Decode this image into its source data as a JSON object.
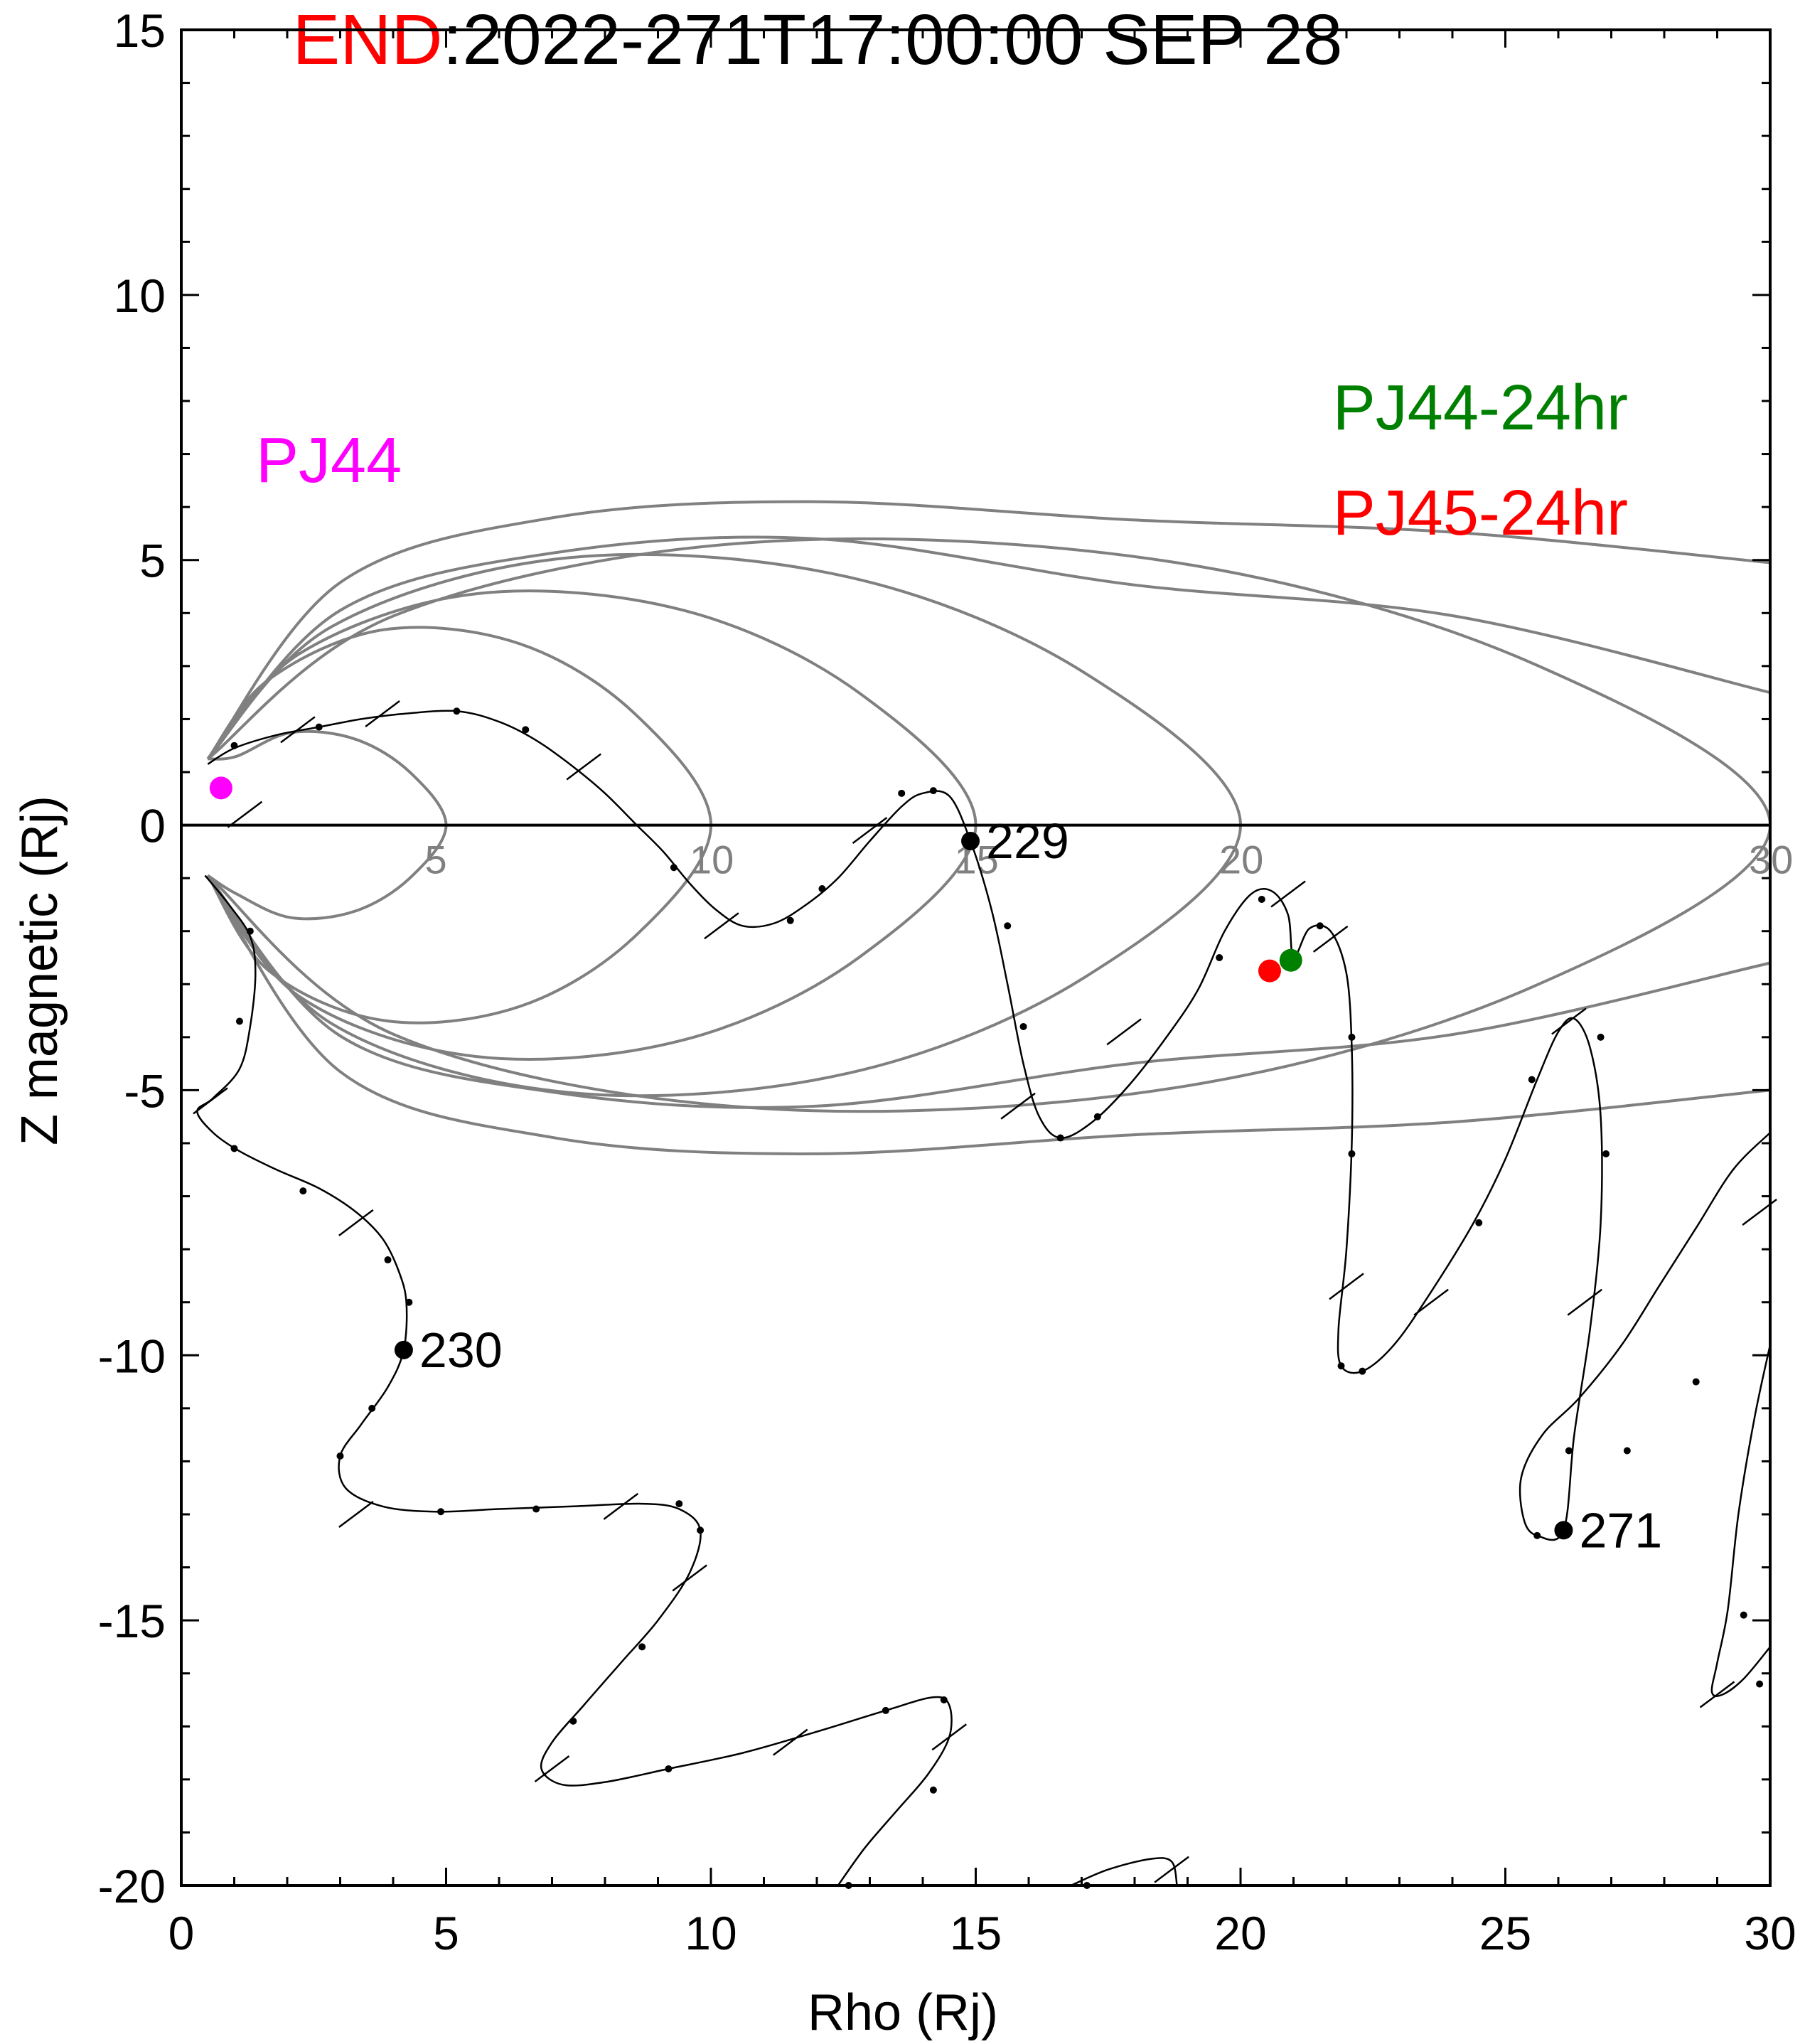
{
  "chart_data": {
    "type": "line",
    "title": {
      "prefix": "END",
      "rest": ":2022-271T17:00:00 SEP 28"
    },
    "xlabel": "Rho (Rj)",
    "ylabel": "Z magnetic (Rj)",
    "xlim": [
      0,
      30
    ],
    "ylim": [
      -20,
      15
    ],
    "xticks": [
      0,
      5,
      10,
      15,
      20,
      25,
      30
    ],
    "yticks": [
      -20,
      -15,
      -10,
      -5,
      0,
      5,
      10,
      15
    ],
    "grid": false,
    "legend": [
      {
        "text": "PJ44",
        "color": "#ff00ff",
        "placement": "top-left"
      },
      {
        "text": "PJ44-24hr",
        "color": "#008000",
        "placement": "top-right"
      },
      {
        "text": "PJ45-24hr",
        "color": "#ff0000",
        "placement": "top-right"
      }
    ],
    "field_line_labels": [
      "5",
      "10",
      "15",
      "20",
      "30"
    ],
    "field_line_color": "#808080",
    "field_lines": [
      {
        "equator_rho": 5,
        "max_z": 1.8
      },
      {
        "equator_rho": 10,
        "max_z": 3.8
      },
      {
        "equator_rho": 15,
        "max_z": 4.5
      },
      {
        "equator_rho": 20,
        "max_z": 5.2
      },
      {
        "equator_rho": 30,
        "max_z": 5.5
      }
    ],
    "open_field_lines": [
      {
        "far_z": 4.95,
        "max_z": 6.1
      },
      {
        "far_z": 2.5,
        "max_z": 5.4
      },
      {
        "far_z": -2.6,
        "max_z": -5.3
      },
      {
        "far_z": -5.0,
        "max_z": -6.2
      }
    ],
    "trajectory": [
      [
        0.5,
        1.15
      ],
      [
        1.0,
        1.45
      ],
      [
        1.8,
        1.7
      ],
      [
        2.6,
        1.85
      ],
      [
        3.4,
        2.0
      ],
      [
        4.2,
        2.1
      ],
      [
        5.2,
        2.15
      ],
      [
        6.0,
        1.95
      ],
      [
        6.7,
        1.6
      ],
      [
        7.4,
        1.1
      ],
      [
        8.0,
        0.6
      ],
      [
        8.6,
        0.0
      ],
      [
        9.1,
        -0.5
      ],
      [
        9.6,
        -1.1
      ],
      [
        10.1,
        -1.6
      ],
      [
        10.6,
        -1.9
      ],
      [
        11.2,
        -1.85
      ],
      [
        11.8,
        -1.5
      ],
      [
        12.4,
        -1.0
      ],
      [
        13.0,
        -0.3
      ],
      [
        13.6,
        0.35
      ],
      [
        14.0,
        0.6
      ],
      [
        14.5,
        0.55
      ],
      [
        14.9,
        -0.3
      ],
      [
        15.3,
        -1.6
      ],
      [
        15.6,
        -3.0
      ],
      [
        15.9,
        -4.5
      ],
      [
        16.2,
        -5.5
      ],
      [
        16.6,
        -5.9
      ],
      [
        17.2,
        -5.6
      ],
      [
        17.9,
        -4.9
      ],
      [
        18.6,
        -4.0
      ],
      [
        19.2,
        -3.1
      ],
      [
        19.7,
        -2.0
      ],
      [
        20.2,
        -1.3
      ],
      [
        20.6,
        -1.25
      ],
      [
        20.9,
        -1.7
      ],
      [
        21.0,
        -2.5
      ],
      [
        21.3,
        -1.95
      ],
      [
        21.7,
        -2.0
      ],
      [
        22.0,
        -2.8
      ],
      [
        22.1,
        -4.2
      ],
      [
        22.1,
        -6.0
      ],
      [
        22.0,
        -8.0
      ],
      [
        21.85,
        -9.5
      ],
      [
        21.9,
        -10.2
      ],
      [
        22.3,
        -10.3
      ],
      [
        22.9,
        -9.8
      ],
      [
        23.6,
        -8.8
      ],
      [
        24.4,
        -7.5
      ],
      [
        25.0,
        -6.3
      ],
      [
        25.6,
        -4.8
      ],
      [
        26.0,
        -3.9
      ],
      [
        26.3,
        -3.65
      ],
      [
        26.6,
        -4.2
      ],
      [
        26.8,
        -5.5
      ],
      [
        26.8,
        -7.5
      ],
      [
        26.6,
        -9.5
      ],
      [
        26.3,
        -11.5
      ],
      [
        26.1,
        -13.3
      ],
      [
        25.6,
        -13.4
      ],
      [
        25.35,
        -13.1
      ],
      [
        25.3,
        -12.3
      ],
      [
        25.7,
        -11.5
      ],
      [
        26.4,
        -10.8
      ],
      [
        27.2,
        -9.8
      ],
      [
        27.9,
        -8.7
      ],
      [
        28.6,
        -7.6
      ],
      [
        29.3,
        -6.5
      ],
      [
        30.0,
        -5.8
      ]
    ],
    "trajectory_lower": [
      [
        0.45,
        -0.95
      ],
      [
        0.9,
        -1.5
      ],
      [
        1.3,
        -2.1
      ],
      [
        1.4,
        -2.8
      ],
      [
        1.3,
        -3.8
      ],
      [
        1.1,
        -4.6
      ],
      [
        0.6,
        -5.15
      ],
      [
        0.3,
        -5.4
      ],
      [
        0.6,
        -5.8
      ],
      [
        1.1,
        -6.15
      ],
      [
        1.8,
        -6.5
      ],
      [
        2.6,
        -6.85
      ],
      [
        3.3,
        -7.3
      ],
      [
        3.8,
        -7.8
      ],
      [
        4.1,
        -8.4
      ],
      [
        4.25,
        -9.0
      ],
      [
        4.2,
        -9.9
      ],
      [
        3.9,
        -10.6
      ],
      [
        3.4,
        -11.3
      ],
      [
        3.0,
        -11.9
      ],
      [
        3.1,
        -12.5
      ],
      [
        3.8,
        -12.85
      ],
      [
        4.8,
        -12.95
      ],
      [
        6.0,
        -12.9
      ],
      [
        7.4,
        -12.85
      ],
      [
        8.7,
        -12.8
      ],
      [
        9.4,
        -12.9
      ],
      [
        9.8,
        -13.3
      ],
      [
        9.6,
        -14.1
      ],
      [
        9.0,
        -15.0
      ],
      [
        8.3,
        -15.8
      ],
      [
        7.6,
        -16.6
      ],
      [
        7.0,
        -17.3
      ],
      [
        6.8,
        -17.8
      ],
      [
        7.2,
        -18.1
      ],
      [
        8.0,
        -18.05
      ],
      [
        9.2,
        -17.8
      ],
      [
        10.6,
        -17.5
      ],
      [
        12.0,
        -17.1
      ],
      [
        13.3,
        -16.7
      ],
      [
        14.2,
        -16.45
      ],
      [
        14.5,
        -16.6
      ],
      [
        14.5,
        -17.2
      ],
      [
        14.1,
        -17.9
      ],
      [
        13.5,
        -18.6
      ],
      [
        12.9,
        -19.3
      ],
      [
        12.4,
        -20.0
      ]
    ],
    "trajectory_bottom": [
      [
        16.8,
        -20.0
      ],
      [
        17.5,
        -19.7
      ],
      [
        18.3,
        -19.5
      ],
      [
        18.7,
        -19.55
      ],
      [
        18.8,
        -20.0
      ]
    ],
    "trajectory_right": [
      [
        30.0,
        -9.8
      ],
      [
        29.7,
        -11.2
      ],
      [
        29.4,
        -13.0
      ],
      [
        29.2,
        -14.8
      ],
      [
        29.0,
        -15.8
      ],
      [
        28.9,
        -16.35
      ],
      [
        29.1,
        -16.4
      ],
      [
        29.5,
        -16.1
      ],
      [
        30.0,
        -15.5
      ]
    ],
    "time_ticks": [
      [
        2.2,
        1.8
      ],
      [
        3.8,
        2.1
      ],
      [
        7.6,
        1.1
      ],
      [
        13.0,
        -0.1
      ],
      [
        17.8,
        -3.9
      ],
      [
        15.8,
        -5.3
      ],
      [
        20.9,
        -1.3
      ],
      [
        21.7,
        -2.15
      ],
      [
        22.0,
        -8.7
      ],
      [
        23.6,
        -9.0
      ],
      [
        26.5,
        -9.0
      ],
      [
        26.2,
        -3.7
      ],
      [
        0.55,
        -5.2
      ],
      [
        3.3,
        -7.5
      ],
      [
        3.3,
        -13.0
      ],
      [
        8.3,
        -12.85
      ],
      [
        9.6,
        -14.2
      ],
      [
        7.0,
        -17.8
      ],
      [
        11.5,
        -17.3
      ],
      [
        14.5,
        -17.2
      ],
      [
        18.7,
        -19.7
      ],
      [
        29.8,
        -7.3
      ],
      [
        29.0,
        -16.4
      ],
      [
        10.2,
        -1.9
      ],
      [
        1.2,
        0.2
      ]
    ],
    "hour_dots": [
      [
        1.0,
        1.5
      ],
      [
        2.6,
        1.85
      ],
      [
        5.2,
        2.15
      ],
      [
        6.5,
        1.8
      ],
      [
        9.3,
        -0.8
      ],
      [
        11.5,
        -1.8
      ],
      [
        12.1,
        -1.2
      ],
      [
        13.6,
        0.6
      ],
      [
        14.2,
        0.65
      ],
      [
        15.6,
        -1.9
      ],
      [
        15.9,
        -3.8
      ],
      [
        16.6,
        -5.9
      ],
      [
        17.3,
        -5.5
      ],
      [
        19.6,
        -2.5
      ],
      [
        20.4,
        -1.4
      ],
      [
        21.5,
        -1.9
      ],
      [
        22.1,
        -4.0
      ],
      [
        22.1,
        -6.2
      ],
      [
        21.9,
        -10.2
      ],
      [
        22.3,
        -10.3
      ],
      [
        24.5,
        -7.5
      ],
      [
        25.5,
        -4.8
      ],
      [
        26.8,
        -4.0
      ],
      [
        26.9,
        -6.2
      ],
      [
        26.2,
        -11.8
      ],
      [
        25.6,
        -13.4
      ],
      [
        27.3,
        -11.8
      ],
      [
        28.6,
        -10.5
      ],
      [
        29.5,
        -14.9
      ],
      [
        29.8,
        -16.2
      ],
      [
        1.3,
        -2.0
      ],
      [
        1.1,
        -3.7
      ],
      [
        1.0,
        -6.1
      ],
      [
        2.3,
        -6.9
      ],
      [
        3.9,
        -8.2
      ],
      [
        4.3,
        -9.0
      ],
      [
        3.6,
        -11.0
      ],
      [
        3.0,
        -11.9
      ],
      [
        4.9,
        -12.95
      ],
      [
        6.7,
        -12.9
      ],
      [
        9.4,
        -12.8
      ],
      [
        9.8,
        -13.3
      ],
      [
        8.7,
        -15.5
      ],
      [
        7.4,
        -16.9
      ],
      [
        9.2,
        -17.8
      ],
      [
        13.3,
        -16.7
      ],
      [
        14.4,
        -16.5
      ],
      [
        14.2,
        -18.2
      ],
      [
        12.6,
        -20.0
      ],
      [
        17.1,
        -20.0
      ]
    ],
    "marked_points": [
      {
        "x": 14.9,
        "y": -0.3,
        "label": "229"
      },
      {
        "x": 4.2,
        "y": -9.9,
        "label": "230"
      },
      {
        "x": 26.1,
        "y": -13.3,
        "label": "271"
      }
    ],
    "spacecraft_points": [
      {
        "x": 0.75,
        "y": 0.7,
        "color": "#ff00ff"
      },
      {
        "x": 20.95,
        "y": -2.55,
        "color": "#008000"
      },
      {
        "x": 20.55,
        "y": -2.75,
        "color": "#ff0000"
      }
    ],
    "axis_color": "#000000"
  }
}
